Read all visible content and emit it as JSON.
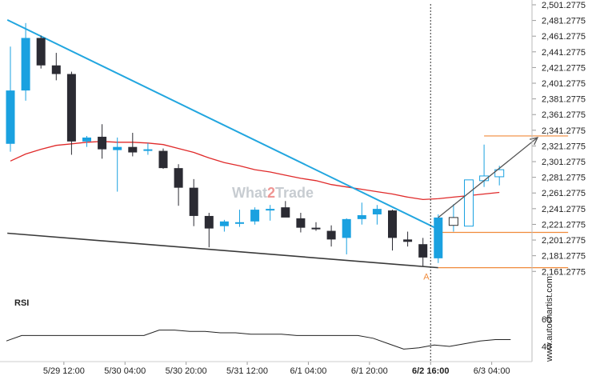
{
  "colors": {
    "bull": "#1aa1e0",
    "bear": "#2b2b33",
    "trend_upper": "#22a6df",
    "trend_lower": "#3a3a3a",
    "ma": "#e02a2a",
    "level": "#f08a3a",
    "arrow": "#555555",
    "rsi": "#222222"
  },
  "watermark": {
    "part1": "What",
    "part2": "2",
    "part3": "Trade"
  },
  "side_label": "www.autochartist.com",
  "rsi_label": "RSI",
  "pattern_point_label": "A",
  "chart_data": [
    {
      "type": "candlestick",
      "title": "",
      "xlabel": "",
      "ylabel": "",
      "ylim": [
        2148.2775,
        2501.2775
      ],
      "y_ticks": [
        "2,501.2775",
        "2,481.2775",
        "2,461.2775",
        "2,441.2775",
        "2,421.2775",
        "2,401.2775",
        "2,381.2775",
        "2,361.2775",
        "2,341.2775",
        "2,321.2775",
        "2,301.2775",
        "2,281.2775",
        "2,261.2775",
        "2,241.2775",
        "2,221.2775",
        "2,201.2775",
        "2,181.2775",
        "2,161.2775"
      ],
      "x_ticks": [
        {
          "label": "5/29 12:00",
          "index": 3.5,
          "bold": false
        },
        {
          "label": "5/30 04:00",
          "index": 7.5,
          "bold": false
        },
        {
          "label": "5/30 20:00",
          "index": 11.5,
          "bold": false
        },
        {
          "label": "5/31 12:00",
          "index": 15.5,
          "bold": false
        },
        {
          "label": "6/1 04:00",
          "index": 19.5,
          "bold": false
        },
        {
          "label": "6/1 20:00",
          "index": 23.5,
          "bold": false
        },
        {
          "label": "6/2 16:00",
          "index": 27.5,
          "bold": true
        },
        {
          "label": "6/3 04:00",
          "index": 31.5,
          "bold": false
        }
      ],
      "candles": [
        {
          "o": 2324,
          "h": 2448,
          "l": 2314,
          "c": 2392
        },
        {
          "o": 2392,
          "h": 2478,
          "l": 2379,
          "c": 2459
        },
        {
          "o": 2459,
          "h": 2462,
          "l": 2420,
          "c": 2424
        },
        {
          "o": 2424,
          "h": 2440,
          "l": 2405,
          "c": 2413
        },
        {
          "o": 2413,
          "h": 2416,
          "l": 2310,
          "c": 2327
        },
        {
          "o": 2327,
          "h": 2334,
          "l": 2320,
          "c": 2332
        },
        {
          "o": 2333,
          "h": 2349,
          "l": 2305,
          "c": 2317
        },
        {
          "o": 2316,
          "h": 2332,
          "l": 2263,
          "c": 2320
        },
        {
          "o": 2320,
          "h": 2338,
          "l": 2308,
          "c": 2313
        },
        {
          "o": 2316,
          "h": 2325,
          "l": 2310,
          "c": 2317
        },
        {
          "o": 2315,
          "h": 2318,
          "l": 2292,
          "c": 2293
        },
        {
          "o": 2293,
          "h": 2298,
          "l": 2245,
          "c": 2268
        },
        {
          "o": 2268,
          "h": 2279,
          "l": 2219,
          "c": 2232
        },
        {
          "o": 2232,
          "h": 2236,
          "l": 2192,
          "c": 2216
        },
        {
          "o": 2219,
          "h": 2227,
          "l": 2212,
          "c": 2225
        },
        {
          "o": 2224,
          "h": 2240,
          "l": 2218,
          "c": 2224
        },
        {
          "o": 2225,
          "h": 2243,
          "l": 2221,
          "c": 2240
        },
        {
          "o": 2239,
          "h": 2246,
          "l": 2226,
          "c": 2241
        },
        {
          "o": 2243,
          "h": 2251,
          "l": 2233,
          "c": 2230
        },
        {
          "o": 2229,
          "h": 2236,
          "l": 2211,
          "c": 2217
        },
        {
          "o": 2217,
          "h": 2224,
          "l": 2213,
          "c": 2215
        },
        {
          "o": 2213,
          "h": 2220,
          "l": 2193,
          "c": 2202
        },
        {
          "o": 2204,
          "h": 2229,
          "l": 2183,
          "c": 2228
        },
        {
          "o": 2228,
          "h": 2249,
          "l": 2221,
          "c": 2233
        },
        {
          "o": 2234,
          "h": 2246,
          "l": 2221,
          "c": 2241
        },
        {
          "o": 2239,
          "h": 2240,
          "l": 2188,
          "c": 2204
        },
        {
          "o": 2202,
          "h": 2212,
          "l": 2193,
          "c": 2199
        },
        {
          "o": 2196,
          "h": 2204,
          "l": 2168,
          "c": 2179
        },
        {
          "o": 2178,
          "h": 2234,
          "l": 2172,
          "c": 2230
        }
      ],
      "forecast_candles": [
        {
          "o": 2220,
          "h": 2247,
          "l": 2212,
          "c": 2230
        },
        {
          "o": 2219,
          "h": 2262,
          "l": 2219,
          "c": 2278
        },
        {
          "o": 2277,
          "h": 2323,
          "l": 2269,
          "c": 2283
        },
        {
          "o": 2282,
          "h": 2296,
          "l": 2271,
          "c": 2291
        }
      ],
      "moving_average": [
        2302,
        2311,
        2317,
        2322,
        2324,
        2326,
        2327,
        2326,
        2326,
        2325,
        2323,
        2318,
        2313,
        2306,
        2300,
        2296,
        2291,
        2288,
        2284,
        2280,
        2277,
        2272,
        2269,
        2266,
        2263,
        2260,
        2256,
        2253,
        2254
      ],
      "moving_average_forecast": [
        2256,
        2258,
        2260,
        2262
      ],
      "trendline_upper": {
        "from": {
          "index": -0.2,
          "value": 2482
        },
        "to": {
          "index": 28,
          "value": 2215
        }
      },
      "trendline_lower": {
        "from": {
          "index": -0.2,
          "value": 2210
        },
        "to": {
          "index": 28,
          "value": 2166
        }
      },
      "levels": [
        {
          "value": 2334,
          "from_index": 31,
          "to_index": 36.5
        },
        {
          "value": 2211,
          "from_index": 28,
          "to_index": 36.5
        },
        {
          "value": 2166,
          "from_index": 28,
          "to_index": 36.5
        }
      ],
      "projection_arrow": {
        "from": {
          "index": 28,
          "value": 2230
        },
        "to": {
          "index": 34.5,
          "value": 2332
        }
      },
      "event_index": 27.5,
      "pattern_point": {
        "index": 27.5,
        "value": 2155
      }
    },
    {
      "type": "line",
      "title": "RSI",
      "ylim": [
        30,
        70
      ],
      "y_ticks": [
        "60",
        "40"
      ],
      "series": [
        {
          "values": [
            44,
            48,
            48,
            48,
            48,
            48,
            48,
            48,
            48,
            48,
            52,
            52,
            51,
            51,
            50,
            50,
            49,
            49,
            49,
            48,
            48,
            48,
            48,
            48,
            46,
            42,
            38,
            39,
            41,
            40,
            42,
            44,
            45,
            45
          ]
        }
      ]
    }
  ]
}
